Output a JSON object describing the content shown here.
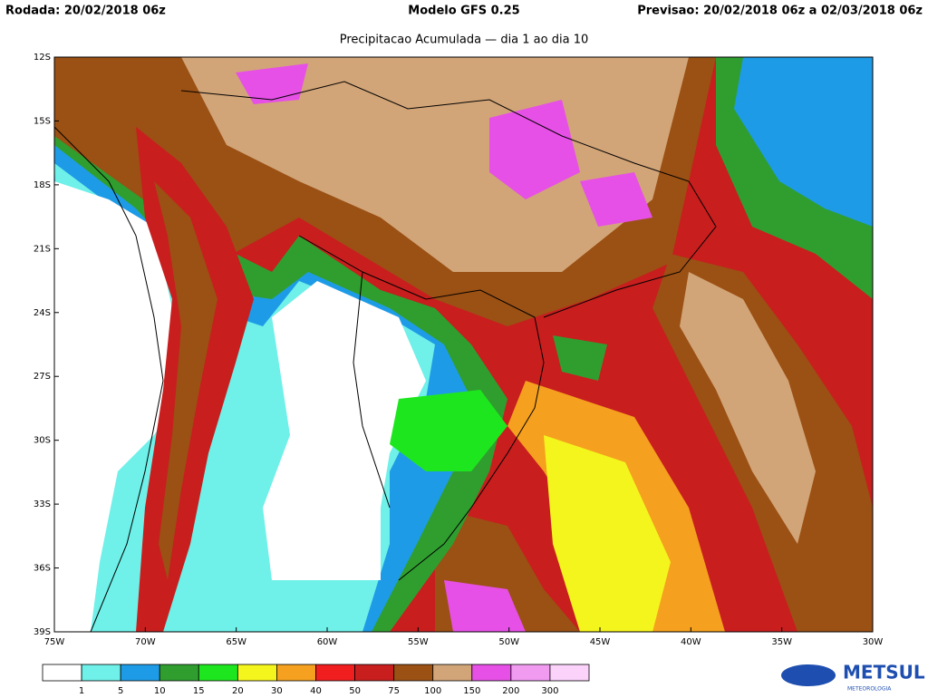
{
  "header": {
    "left": "Rodada: 20/02/2018 06z",
    "center": "Modelo GFS 0.25",
    "right": "Previsao: 20/02/2018 06z a 02/03/2018 06z",
    "subtitle": "Precipitacao Acumulada — dia 1 ao dia 10"
  },
  "map": {
    "lat_labels": [
      "12S",
      "15S",
      "18S",
      "21S",
      "24S",
      "27S",
      "30S",
      "33S",
      "36S",
      "39S"
    ],
    "lon_labels": [
      "75W",
      "70W",
      "65W",
      "60W",
      "55W",
      "50W",
      "45W",
      "40W",
      "35W",
      "30W"
    ]
  },
  "colorbar": {
    "labels": [
      "1",
      "5",
      "10",
      "15",
      "20",
      "30",
      "40",
      "50",
      "75",
      "100",
      "150",
      "200",
      "300"
    ],
    "colors": [
      "#ffffff",
      "#6ff0e8",
      "#1e9be6",
      "#2f9e2f",
      "#1ee61e",
      "#f5f51e",
      "#f5a01e",
      "#f01e1e",
      "#c81e1e",
      "#9b5014",
      "#d2a578",
      "#e650e6",
      "#f09bf0",
      "#fad2fa"
    ]
  },
  "logo": {
    "name": "METSUL",
    "tagline": "METEOROLOGIA"
  }
}
